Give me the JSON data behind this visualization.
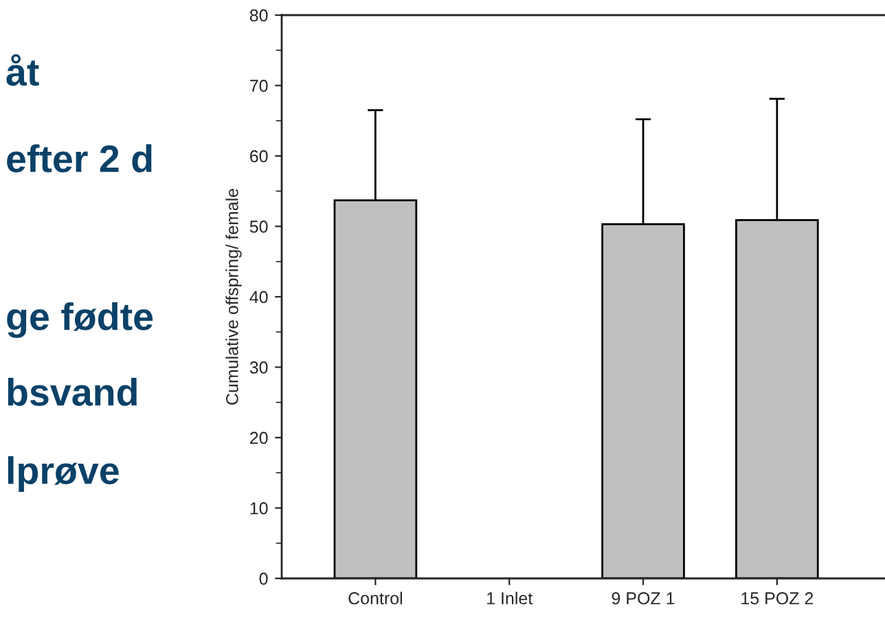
{
  "chart_data": {
    "type": "bar",
    "ylabel": "Cumulative offspring/ female",
    "categories": [
      "Control",
      "1 Inlet",
      "9 POZ 1",
      "15 POZ 2"
    ],
    "values": [
      53.7,
      null,
      50.3,
      50.9
    ],
    "errors": [
      12.8,
      null,
      14.9,
      17.2
    ],
    "color": "#c0c0c0",
    "ylim": [
      0,
      80
    ],
    "yticks": [
      0,
      10,
      20,
      30,
      40,
      50,
      60,
      70,
      80
    ],
    "grid": false,
    "legend": false,
    "annotations": [
      "åt",
      "efter 2 d",
      "ge fødte",
      "bsvand",
      "lprøve"
    ]
  }
}
